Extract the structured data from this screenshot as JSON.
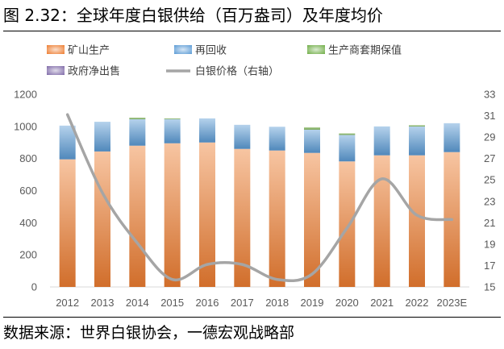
{
  "figure": {
    "title": "图 2.32：全球年度白银供给（百万盎司）及年度均价",
    "source": "数据来源：世界白银协会，一德宏观战略部"
  },
  "chart_data": {
    "type": "bar",
    "categories": [
      "2012",
      "2013",
      "2014",
      "2015",
      "2016",
      "2017",
      "2018",
      "2019",
      "2020",
      "2021",
      "2022",
      "2023E"
    ],
    "series": [
      {
        "name": "矿山生产",
        "kind": "bar",
        "axis": "left",
        "color": "#ED7D31",
        "values": [
          795,
          844,
          880,
          895,
          900,
          860,
          850,
          835,
          782,
          820,
          820,
          840
        ]
      },
      {
        "name": "再回收",
        "kind": "bar",
        "axis": "left",
        "color": "#5B9BD5",
        "values": [
          210,
          185,
          165,
          150,
          150,
          150,
          148,
          145,
          165,
          180,
          180,
          180
        ]
      },
      {
        "name": "生产商套期保值",
        "kind": "bar",
        "axis": "left",
        "color": "#70AD47",
        "values": [
          0,
          0,
          10,
          5,
          0,
          0,
          0,
          15,
          10,
          0,
          8,
          0
        ]
      },
      {
        "name": "政府净出售",
        "kind": "bar",
        "axis": "left",
        "color": "#7F6AA8",
        "values": [
          0,
          0,
          0,
          0,
          0,
          0,
          0,
          0,
          0,
          0,
          0,
          0
        ]
      },
      {
        "name": "白银价格（右轴）",
        "kind": "line",
        "axis": "right",
        "color": "#A5A5A5",
        "values": [
          31.1,
          23.8,
          19.1,
          15.7,
          17.1,
          17.1,
          15.7,
          16.2,
          20.5,
          25.1,
          21.7,
          21.3
        ]
      }
    ],
    "y_left": {
      "min": 0,
      "max": 1200,
      "step": 200
    },
    "y_right": {
      "min": 15,
      "max": 33,
      "step": 2
    },
    "legend": {
      "position": "top"
    },
    "grid": false
  }
}
